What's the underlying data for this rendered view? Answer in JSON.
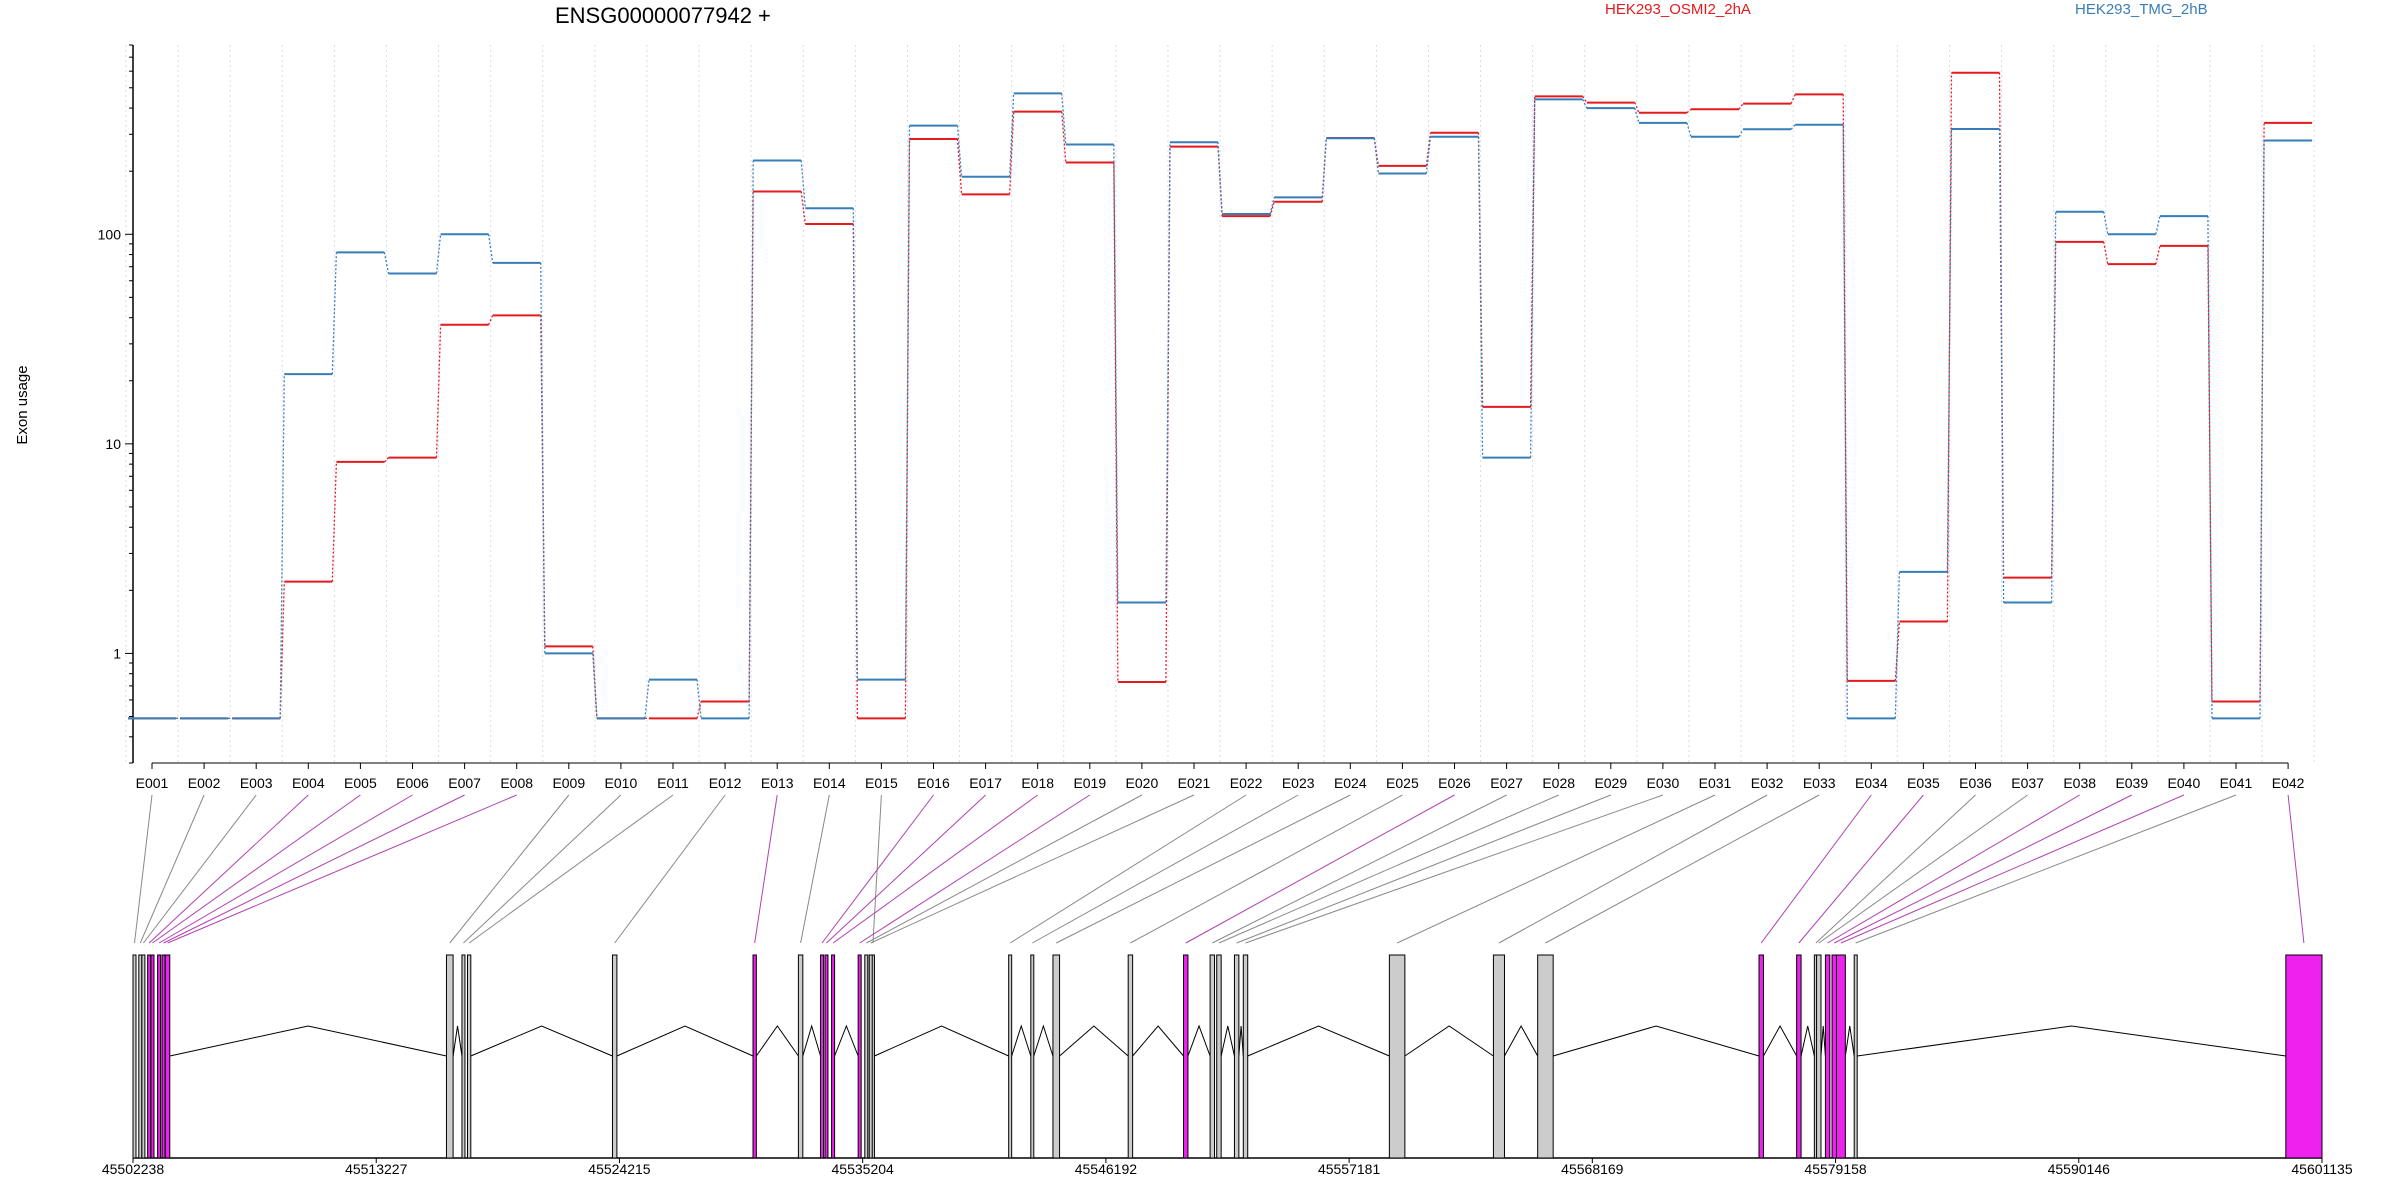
{
  "chart_data": {
    "type": "line",
    "title": "ENSG00000077942 +",
    "ylabel": "Exon usage",
    "yscale": "log",
    "ylim": [
      0.3,
      800
    ],
    "yticks": [
      1,
      10,
      100
    ],
    "grid": true,
    "legend_position": "top-right",
    "categories": [
      "E001",
      "E002",
      "E003",
      "E004",
      "E005",
      "E006",
      "E007",
      "E008",
      "E009",
      "E010",
      "E011",
      "E012",
      "E013",
      "E014",
      "E015",
      "E016",
      "E017",
      "E018",
      "E019",
      "E020",
      "E021",
      "E022",
      "E023",
      "E024",
      "E025",
      "E026",
      "E027",
      "E028",
      "E029",
      "E030",
      "E031",
      "E032",
      "E033",
      "E034",
      "E035",
      "E036",
      "E037",
      "E038",
      "E039",
      "E040",
      "E041",
      "E042"
    ],
    "series": [
      {
        "name": "HEK293_OSMI2_2hA",
        "color": "#e41a1c",
        "values": [
          0.49,
          0.49,
          0.49,
          2.2,
          8.2,
          8.6,
          37,
          41,
          1.08,
          0.49,
          0.49,
          0.59,
          160,
          112,
          0.49,
          285,
          155,
          385,
          220,
          0.73,
          262,
          122,
          143,
          288,
          212,
          305,
          15,
          455,
          425,
          380,
          395,
          420,
          465,
          0.74,
          1.42,
          590,
          2.3,
          92,
          72,
          88,
          0.59,
          340
        ]
      },
      {
        "name": "HEK293_TMG_2hB",
        "color": "#377eb8",
        "values": [
          0.49,
          0.49,
          0.49,
          21.5,
          82,
          65,
          100,
          73,
          1.0,
          0.49,
          0.75,
          0.49,
          225,
          133,
          0.75,
          330,
          188,
          470,
          268,
          1.75,
          275,
          125,
          150,
          287,
          195,
          292,
          8.6,
          440,
          400,
          340,
          292,
          317,
          333,
          0.49,
          2.45,
          318,
          1.75,
          128,
          100,
          122,
          0.49,
          280
        ]
      }
    ],
    "exon_status": [
      "o",
      "o",
      "o",
      "s",
      "s",
      "s",
      "s",
      "s",
      "o",
      "o",
      "o",
      "o",
      "s",
      "o",
      "o",
      "s",
      "s",
      "s",
      "s",
      "o",
      "o",
      "o",
      "o",
      "o",
      "o",
      "s",
      "o",
      "o",
      "o",
      "o",
      "o",
      "o",
      "o",
      "s",
      "s",
      "o",
      "o",
      "s",
      "s",
      "s",
      "o",
      "s"
    ],
    "exon_spans": [
      [
        45502238,
        45502330
      ],
      [
        45502500,
        45502560
      ],
      [
        45502640,
        45502720
      ],
      [
        45502900,
        45503000
      ],
      [
        45503050,
        45503120
      ],
      [
        45503350,
        45503450
      ],
      [
        45503550,
        45503650
      ],
      [
        45503700,
        45503900
      ],
      [
        45516400,
        45516700
      ],
      [
        45517100,
        45517150
      ],
      [
        45517350,
        45517500
      ],
      [
        45523900,
        45524100
      ],
      [
        45530250,
        45530400
      ],
      [
        45532300,
        45532500
      ],
      [
        45535600,
        45535700
      ],
      [
        45533300,
        45533400
      ],
      [
        45533500,
        45533600
      ],
      [
        45533800,
        45533900
      ],
      [
        45535000,
        45535100
      ],
      [
        45535300,
        45535400
      ],
      [
        45535500,
        45535600
      ],
      [
        45541800,
        45541900
      ],
      [
        45542800,
        45542900
      ],
      [
        45543800,
        45544100
      ],
      [
        45547200,
        45547400
      ],
      [
        45549700,
        45549900
      ],
      [
        45550900,
        45551100
      ],
      [
        45551200,
        45551400
      ],
      [
        45552000,
        45552200
      ],
      [
        45552400,
        45552600
      ],
      [
        45559000,
        45559700
      ],
      [
        45563700,
        45564200
      ],
      [
        45565700,
        45566400
      ],
      [
        45575700,
        45575900
      ],
      [
        45577400,
        45577600
      ],
      [
        45578200,
        45578300
      ],
      [
        45578300,
        45578500
      ],
      [
        45578700,
        45578900
      ],
      [
        45579000,
        45579200
      ],
      [
        45579200,
        45579600
      ],
      [
        45580000,
        45580100
      ],
      [
        45599500,
        45601135
      ]
    ],
    "gene_axis": {
      "range": [
        45502238,
        45601135
      ],
      "ticks": [
        "45502238",
        "45513227",
        "45524215",
        "45535204",
        "45546192",
        "45557181",
        "45568169",
        "45579158",
        "45590146",
        "45601135"
      ]
    }
  },
  "colors": {
    "significant": "#ee22ee",
    "normal": "#cccccc",
    "series_a": "#e41a1c",
    "series_b": "#377eb8"
  }
}
